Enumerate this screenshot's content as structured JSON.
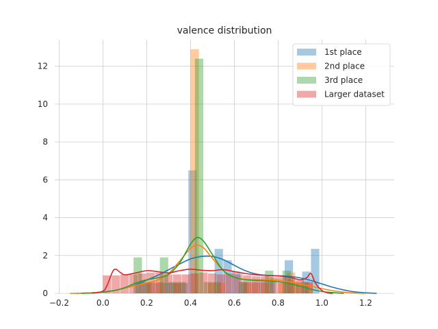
{
  "chart_data": {
    "type": "histogram",
    "title": "valence distribution",
    "xlabel": "",
    "ylabel": "",
    "xlim": [
      -0.22,
      1.33
    ],
    "ylim": [
      0,
      13.4
    ],
    "x_ticks": [
      -0.2,
      0.0,
      0.2,
      0.4,
      0.6,
      0.8,
      1.0,
      1.2
    ],
    "x_tick_labels": [
      "−0.2",
      "0.0",
      "0.2",
      "0.4",
      "0.6",
      "0.8",
      "1.0",
      "1.2"
    ],
    "y_ticks": [
      0,
      2,
      4,
      6,
      8,
      10,
      12
    ],
    "y_tick_labels": [
      "0",
      "2",
      "4",
      "6",
      "8",
      "10",
      "12"
    ],
    "grid": true,
    "legend_position": "top-right",
    "series": [
      {
        "name": "1st place",
        "color": "#1f77b4",
        "bin_edges": [
          0.03,
          0.07,
          0.11,
          0.15,
          0.19,
          0.23,
          0.27,
          0.31,
          0.35,
          0.39,
          0.43,
          0.47,
          0.51,
          0.55,
          0.59,
          0.63,
          0.67,
          0.71,
          0.75,
          0.79,
          0.83,
          0.87,
          0.91,
          0.95,
          0.99
        ],
        "counts": [
          0,
          0,
          0,
          0.55,
          0.55,
          0.55,
          0.55,
          0.55,
          0.55,
          6.5,
          0,
          0,
          2.35,
          1.75,
          1.15,
          0.6,
          0.6,
          0.6,
          0.6,
          0,
          1.75,
          0,
          1.15,
          2.35
        ],
        "kde": {
          "x": [
            -0.12,
            -0.05,
            0.0,
            0.05,
            0.1,
            0.15,
            0.2,
            0.25,
            0.3,
            0.35,
            0.4,
            0.45,
            0.5,
            0.55,
            0.6,
            0.65,
            0.7,
            0.75,
            0.8,
            0.85,
            0.9,
            0.95,
            1.0,
            1.05,
            1.1,
            1.15,
            1.2,
            1.25
          ],
          "y": [
            0.0,
            0.03,
            0.08,
            0.15,
            0.28,
            0.45,
            0.7,
            0.95,
            1.25,
            1.55,
            1.82,
            1.95,
            1.95,
            1.78,
            1.48,
            1.2,
            1.02,
            0.95,
            0.93,
            0.9,
            0.82,
            0.68,
            0.5,
            0.32,
            0.18,
            0.08,
            0.03,
            0.0
          ]
        }
      },
      {
        "name": "2nd place",
        "color": "#ff7f0e",
        "bin_edges": [
          0.0,
          0.04,
          0.08,
          0.12,
          0.16,
          0.2,
          0.24,
          0.28,
          0.32,
          0.36,
          0.4,
          0.44,
          0.48,
          0.52,
          0.56,
          0.6,
          0.64,
          0.68,
          0.72,
          0.76,
          0.8,
          0.84,
          0.88,
          0.92,
          0.96
        ],
        "counts": [
          0,
          0,
          0,
          0,
          0,
          0.6,
          0.6,
          0,
          0.55,
          0,
          12.9,
          0,
          0.55,
          0.55,
          0,
          0,
          0.55,
          0.55,
          0.55,
          0,
          0.55,
          1.1,
          0.55,
          0.55
        ],
        "kde": {
          "x": [
            -0.15,
            -0.1,
            -0.05,
            0.0,
            0.05,
            0.1,
            0.15,
            0.2,
            0.25,
            0.3,
            0.35,
            0.4,
            0.43,
            0.46,
            0.5,
            0.55,
            0.6,
            0.65,
            0.7,
            0.75,
            0.8,
            0.85,
            0.9,
            0.95,
            1.0,
            1.05,
            1.1,
            1.15,
            1.2
          ],
          "y": [
            0.0,
            0.01,
            0.03,
            0.07,
            0.15,
            0.28,
            0.42,
            0.55,
            0.7,
            1.05,
            1.7,
            2.38,
            2.55,
            2.4,
            1.85,
            1.2,
            0.85,
            0.74,
            0.72,
            0.72,
            0.7,
            0.62,
            0.5,
            0.38,
            0.25,
            0.14,
            0.06,
            0.02,
            0.0
          ]
        }
      },
      {
        "name": "3rd place",
        "color": "#2ca02c",
        "bin_edges": [
          0.02,
          0.06,
          0.1,
          0.14,
          0.18,
          0.22,
          0.26,
          0.3,
          0.34,
          0.38,
          0.42,
          0.46,
          0.5,
          0.54,
          0.58,
          0.62,
          0.66,
          0.7,
          0.74,
          0.78,
          0.82,
          0.86,
          0.9,
          0.94
        ],
        "counts": [
          0,
          0,
          0,
          1.9,
          0.6,
          0,
          1.9,
          0.6,
          0.6,
          0,
          12.4,
          0.6,
          0.6,
          0,
          0,
          0.6,
          0,
          0,
          1.2,
          0,
          1.2,
          0.6,
          0.6
        ],
        "kde": {
          "x": [
            -0.1,
            -0.05,
            0.0,
            0.05,
            0.1,
            0.15,
            0.2,
            0.25,
            0.3,
            0.35,
            0.4,
            0.43,
            0.46,
            0.5,
            0.55,
            0.6,
            0.65,
            0.7,
            0.75,
            0.8,
            0.85,
            0.9,
            0.95,
            1.0,
            1.05,
            1.1
          ],
          "y": [
            0.0,
            0.02,
            0.06,
            0.14,
            0.3,
            0.55,
            0.72,
            0.82,
            1.0,
            1.6,
            2.6,
            2.95,
            2.75,
            2.05,
            1.2,
            0.85,
            0.72,
            0.68,
            0.66,
            0.62,
            0.52,
            0.38,
            0.22,
            0.1,
            0.04,
            0.0
          ]
        }
      },
      {
        "name": "Larger dataset",
        "color": "#d62728",
        "bin_edges": [
          0.0,
          0.04,
          0.08,
          0.12,
          0.16,
          0.2,
          0.24,
          0.28,
          0.32,
          0.36,
          0.4,
          0.44,
          0.48,
          0.52,
          0.56,
          0.6,
          0.64,
          0.68,
          0.72,
          0.76,
          0.8,
          0.84,
          0.88,
          0.92,
          0.96
        ],
        "counts": [
          0.95,
          0.95,
          1.0,
          1.0,
          1.05,
          1.1,
          1.1,
          1.0,
          1.0,
          1.0,
          1.05,
          1.1,
          1.05,
          1.0,
          1.05,
          1.0,
          0.95,
          0.9,
          0.9,
          0.85,
          0.85,
          0.75,
          0.7,
          0.6
        ],
        "kde": {
          "x": [
            -0.05,
            0.0,
            0.02,
            0.05,
            0.08,
            0.1,
            0.15,
            0.2,
            0.25,
            0.3,
            0.35,
            0.4,
            0.45,
            0.5,
            0.55,
            0.6,
            0.65,
            0.7,
            0.75,
            0.8,
            0.85,
            0.9,
            0.93,
            0.95,
            0.97,
            1.0,
            1.03,
            1.05
          ],
          "y": [
            0.0,
            0.12,
            0.45,
            1.25,
            1.1,
            0.98,
            1.08,
            1.2,
            1.15,
            1.08,
            1.2,
            1.28,
            1.22,
            1.2,
            1.25,
            1.15,
            1.05,
            0.98,
            0.95,
            0.92,
            0.85,
            0.72,
            0.82,
            1.05,
            0.55,
            0.15,
            0.02,
            0.0
          ]
        }
      }
    ]
  }
}
